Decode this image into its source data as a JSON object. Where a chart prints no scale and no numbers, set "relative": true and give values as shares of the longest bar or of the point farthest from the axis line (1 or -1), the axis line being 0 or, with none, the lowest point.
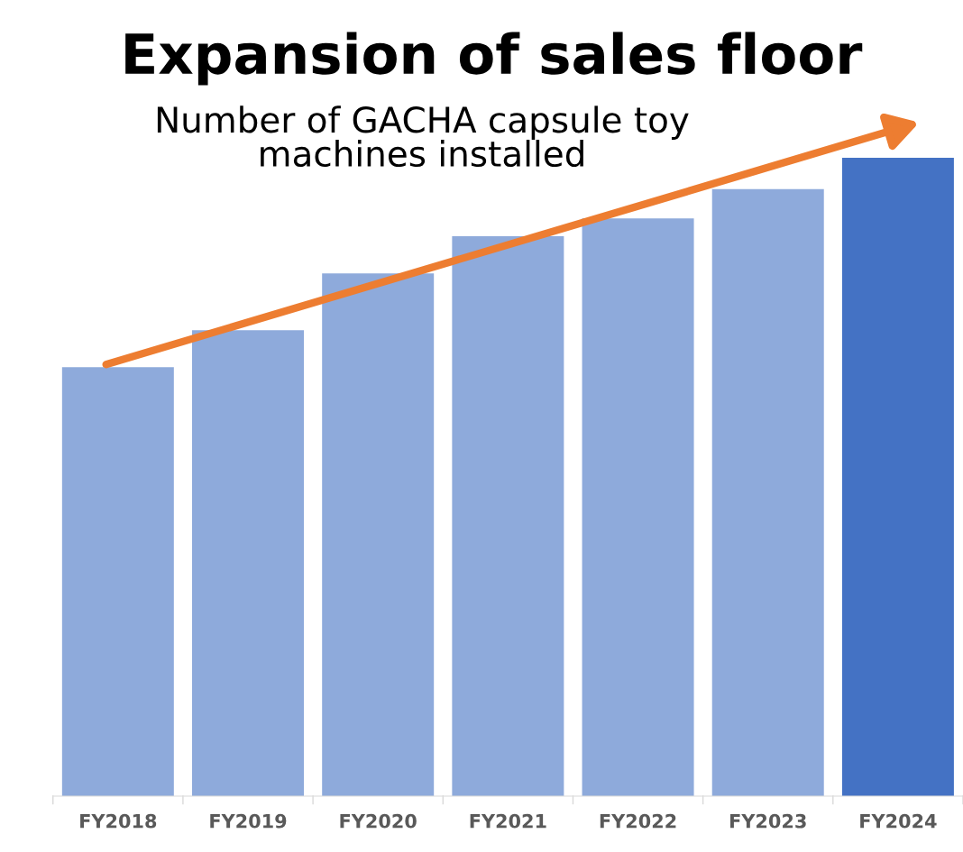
{
  "chart_data": {
    "type": "bar",
    "title": "Expansion of sales floor",
    "subtitle": "Number of GACHA capsule toy\nmachines installed",
    "categories": [
      "FY2018",
      "FY2019",
      "FY2020",
      "FY2021",
      "FY2022",
      "FY2023",
      "FY2024"
    ],
    "values": [
      0.672,
      0.73,
      0.819,
      0.877,
      0.905,
      0.951,
      1
    ],
    "colors": [
      "#8eaadb",
      "#8eaadb",
      "#8eaadb",
      "#8eaadb",
      "#8eaadb",
      "#8eaadb",
      "#4472c4"
    ],
    "relative": true,
    "grid": false,
    "legend": false
  }
}
